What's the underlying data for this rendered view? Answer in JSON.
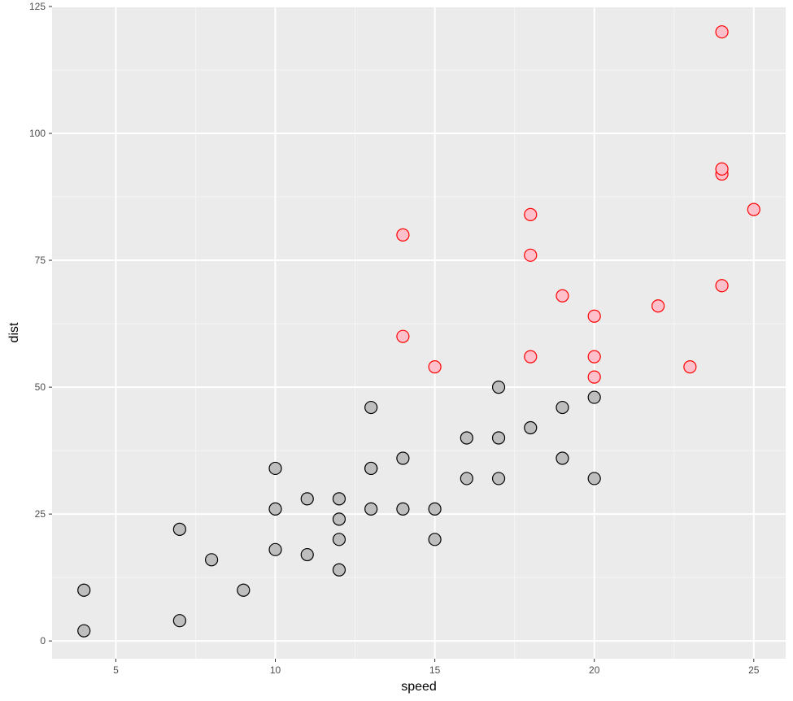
{
  "chart_data": {
    "type": "scatter",
    "title": "",
    "xlabel": "speed",
    "ylabel": "dist",
    "xlim": [
      3,
      26
    ],
    "ylim": [
      -3.5,
      125
    ],
    "x_ticks": [
      5,
      10,
      15,
      20,
      25
    ],
    "y_ticks": [
      0,
      25,
      50,
      75,
      100,
      125
    ],
    "grid": true,
    "legend": "none",
    "series": [
      {
        "fill": "#bebebe",
        "stroke": "#000000",
        "points": [
          [
            4,
            2
          ],
          [
            4,
            10
          ],
          [
            7,
            4
          ],
          [
            7,
            22
          ],
          [
            8,
            16
          ],
          [
            9,
            10
          ],
          [
            10,
            18
          ],
          [
            10,
            26
          ],
          [
            10,
            34
          ],
          [
            11,
            17
          ],
          [
            11,
            28
          ],
          [
            12,
            14
          ],
          [
            12,
            20
          ],
          [
            12,
            24
          ],
          [
            12,
            28
          ],
          [
            13,
            26
          ],
          [
            13,
            34
          ],
          [
            13,
            34
          ],
          [
            13,
            46
          ],
          [
            14,
            26
          ],
          [
            14,
            36
          ],
          [
            15,
            20
          ],
          [
            15,
            26
          ],
          [
            16,
            32
          ],
          [
            16,
            40
          ],
          [
            17,
            32
          ],
          [
            17,
            40
          ],
          [
            17,
            50
          ],
          [
            18,
            42
          ],
          [
            19,
            36
          ],
          [
            19,
            46
          ],
          [
            20,
            32
          ],
          [
            20,
            48
          ]
        ]
      },
      {
        "fill": "#ffc0cb",
        "stroke": "#ff0000",
        "points": [
          [
            14,
            60
          ],
          [
            14,
            80
          ],
          [
            15,
            54
          ],
          [
            18,
            56
          ],
          [
            18,
            76
          ],
          [
            18,
            84
          ],
          [
            19,
            68
          ],
          [
            20,
            52
          ],
          [
            20,
            56
          ],
          [
            20,
            64
          ],
          [
            22,
            66
          ],
          [
            23,
            54
          ],
          [
            24,
            70
          ],
          [
            24,
            92
          ],
          [
            24,
            93
          ],
          [
            24,
            120
          ],
          [
            25,
            85
          ]
        ]
      }
    ]
  }
}
